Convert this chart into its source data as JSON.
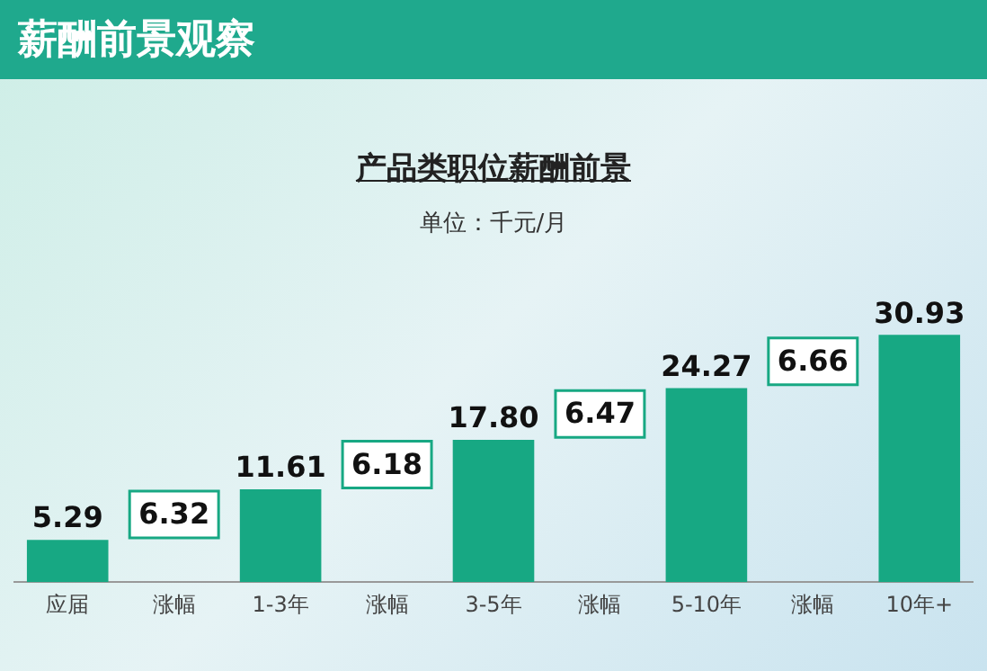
{
  "chart_data": {
    "type": "bar",
    "title": "薪酬前景观察",
    "subtitle": "产品类职位薪酬前景",
    "categories": [
      "应届",
      "涨幅",
      "1-3年",
      "涨幅",
      "3-5年",
      "涨幅",
      "5-10年",
      "涨幅",
      "10年+"
    ],
    "values": [
      5.29,
      null,
      11.61,
      null,
      17.8,
      null,
      24.27,
      null,
      30.93
    ],
    "value_labels": [
      "5.29",
      null,
      "11.61",
      null,
      "17.80",
      null,
      "24.27",
      null,
      "30.93"
    ],
    "color": "#17a883",
    "annotations": [
      "单位：千元/月",
      "6.32",
      "6.18",
      "6.47",
      "6.66"
    ],
    "grid": false,
    "legend": false,
    "tick_labels": "x"
  }
}
